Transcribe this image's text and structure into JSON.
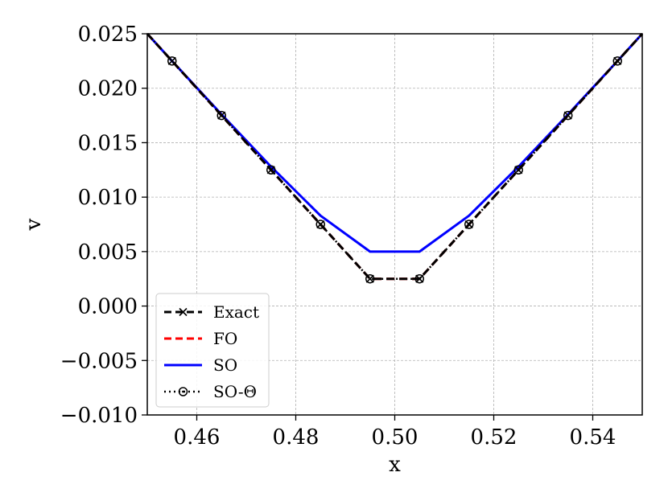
{
  "chart_data": {
    "type": "line",
    "xlabel": "x",
    "ylabel": "v",
    "xlim": [
      0.45,
      0.55
    ],
    "ylim": [
      -0.01,
      0.025
    ],
    "xticks": [
      0.46,
      0.48,
      0.5,
      0.52,
      0.54
    ],
    "xtick_labels": [
      "0.46",
      "0.48",
      "0.50",
      "0.52",
      "0.54"
    ],
    "yticks": [
      -0.01,
      -0.005,
      0.0,
      0.005,
      0.01,
      0.015,
      0.02,
      0.025
    ],
    "ytick_labels": [
      "−0.010",
      "−0.005",
      "0.000",
      "0.005",
      "0.010",
      "0.015",
      "0.020",
      "0.025"
    ],
    "grid": true,
    "legend_position": "lower-left",
    "series": [
      {
        "name": "Exact",
        "color": "#000000",
        "style": "dashed-x",
        "x": [
          0.45,
          0.455,
          0.465,
          0.475,
          0.485,
          0.495,
          0.505,
          0.515,
          0.525,
          0.535,
          0.545,
          0.55
        ],
        "y": [
          0.025,
          0.0225,
          0.0175,
          0.0125,
          0.0075,
          0.0025,
          0.0025,
          0.0075,
          0.0125,
          0.0175,
          0.0225,
          0.025
        ]
      },
      {
        "name": "FO",
        "color": "#ff0000",
        "style": "dashed",
        "x": [
          0.45,
          0.455,
          0.465,
          0.475,
          0.485,
          0.495,
          0.505,
          0.515,
          0.525,
          0.535,
          0.545,
          0.55
        ],
        "y": [
          0.025,
          0.0225,
          0.0175,
          0.0125,
          0.0075,
          0.0025,
          0.0025,
          0.0075,
          0.0125,
          0.0175,
          0.0225,
          0.025
        ]
      },
      {
        "name": "SO",
        "color": "#0000ff",
        "style": "solid",
        "x": [
          0.45,
          0.455,
          0.465,
          0.475,
          0.485,
          0.495,
          0.505,
          0.515,
          0.525,
          0.535,
          0.545,
          0.55
        ],
        "y": [
          0.025,
          0.0225,
          0.0176,
          0.0128,
          0.0083,
          0.005,
          0.005,
          0.0083,
          0.0128,
          0.0176,
          0.0225,
          0.025
        ]
      },
      {
        "name": "SO-Θ",
        "color": "#000000",
        "style": "dotted-circle",
        "x": [
          0.45,
          0.455,
          0.465,
          0.475,
          0.485,
          0.495,
          0.505,
          0.515,
          0.525,
          0.535,
          0.545,
          0.55
        ],
        "y": [
          0.025,
          0.0225,
          0.0175,
          0.0125,
          0.0075,
          0.0025,
          0.0025,
          0.0075,
          0.0125,
          0.0175,
          0.0225,
          0.025
        ]
      }
    ]
  }
}
